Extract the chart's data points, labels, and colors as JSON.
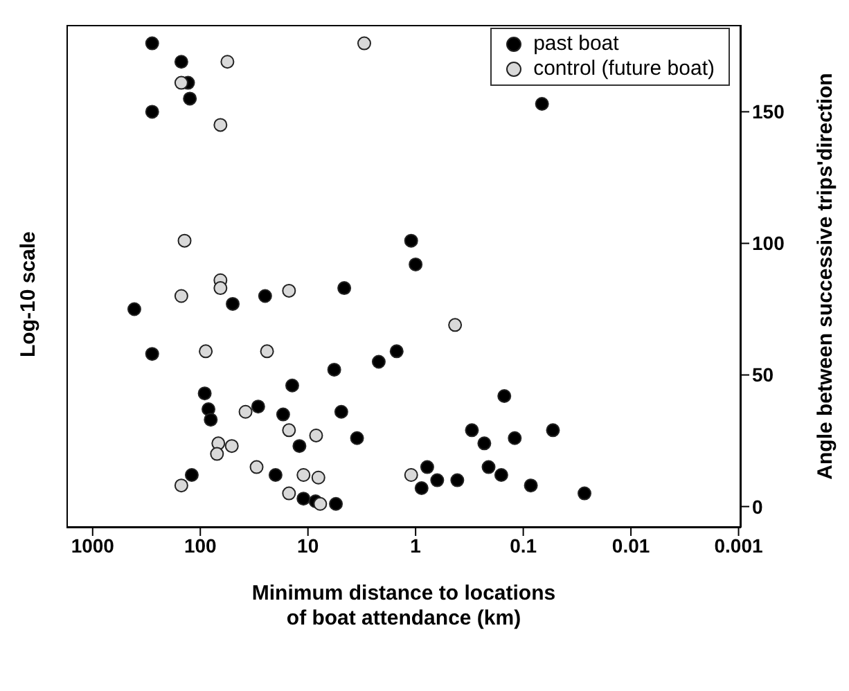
{
  "chart_data": {
    "type": "scatter",
    "xlabel": "Minimum distance to locations of boat attendance (km)",
    "ylabel": "Angle between successive trips'direction",
    "annotations": [
      "Log-10 scale"
    ],
    "log": "x",
    "xlim": [
      1750,
      0.00095
    ],
    "xticks": [
      1000,
      100,
      10,
      1,
      0.1,
      0.01,
      0.001
    ],
    "ylim": [
      -8,
      183
    ],
    "yticks": [
      0,
      50,
      100,
      150
    ],
    "grid": false,
    "legend": "top right",
    "marker": "circle",
    "series": [
      {
        "name": "past boat",
        "color": "#000000",
        "x": [
          280,
          150,
          130,
          125,
          280,
          1.1,
          1.0,
          4.6,
          25,
          50,
          410,
          280,
          1.5,
          2.2,
          5.7,
          14,
          91,
          84,
          80,
          29,
          17,
          4.9,
          3.5,
          12,
          120,
          20,
          11,
          8.5,
          5.5,
          0.78,
          0.88,
          0.63,
          0.41,
          0.3,
          0.23,
          0.21,
          0.16,
          0.15,
          0.12,
          0.053,
          0.085,
          0.027,
          0.067
        ],
        "values": [
          176,
          169,
          161,
          155,
          150,
          101,
          92,
          83,
          80,
          77,
          75,
          58,
          59,
          55,
          52,
          46,
          43,
          37,
          33,
          38,
          35,
          36,
          26,
          23,
          12,
          12,
          3,
          2,
          1,
          15,
          7,
          10,
          10,
          29,
          24,
          15,
          12,
          42,
          26,
          29,
          8,
          5,
          153
        ]
      },
      {
        "name": "control (future boat)",
        "color": "#d9d9d9",
        "x": [
          3.0,
          56,
          150,
          65,
          140,
          65,
          65,
          150,
          15,
          0.43,
          89,
          24,
          38,
          15,
          8.4,
          68,
          51,
          70,
          30,
          11,
          8,
          150,
          15,
          7.7,
          1.1
        ],
        "values": [
          176,
          169,
          161,
          145,
          101,
          86,
          83,
          80,
          82,
          69,
          59,
          59,
          36,
          29,
          27,
          24,
          23,
          20,
          15,
          12,
          11,
          8,
          5,
          1,
          12
        ]
      }
    ]
  }
}
